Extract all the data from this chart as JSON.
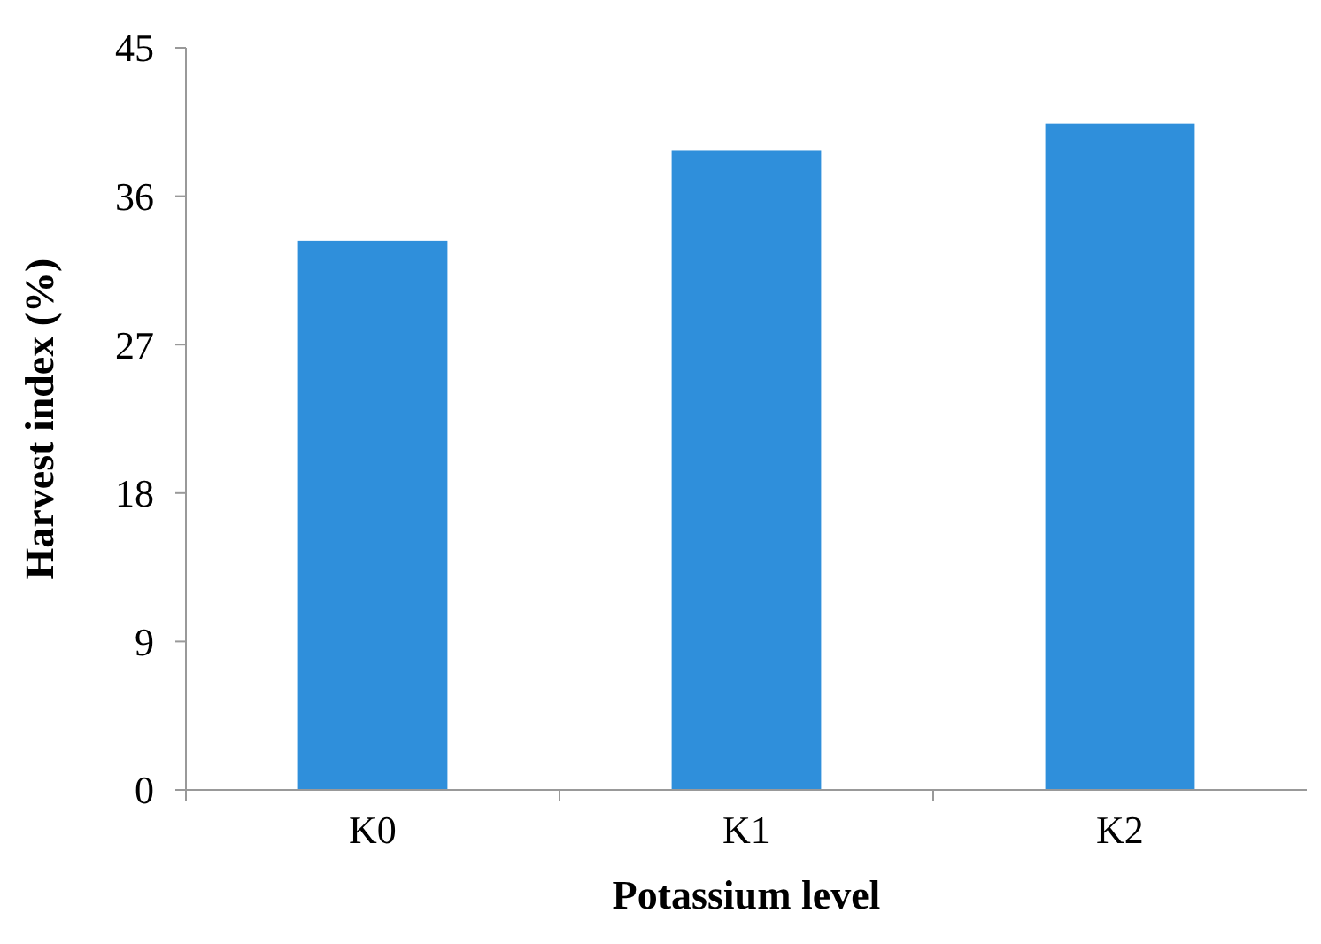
{
  "chart_data": {
    "type": "bar",
    "xlabel": "Potassium level",
    "ylabel": "Harvest index (%)",
    "categories": [
      "K0",
      "K1",
      "K2"
    ],
    "values": [
      33.3,
      38.8,
      40.4
    ],
    "color": "#2f8fdb",
    "ylim": [
      0,
      45
    ],
    "yticks": [
      0,
      9,
      18,
      27,
      36,
      45
    ],
    "grid": false
  }
}
